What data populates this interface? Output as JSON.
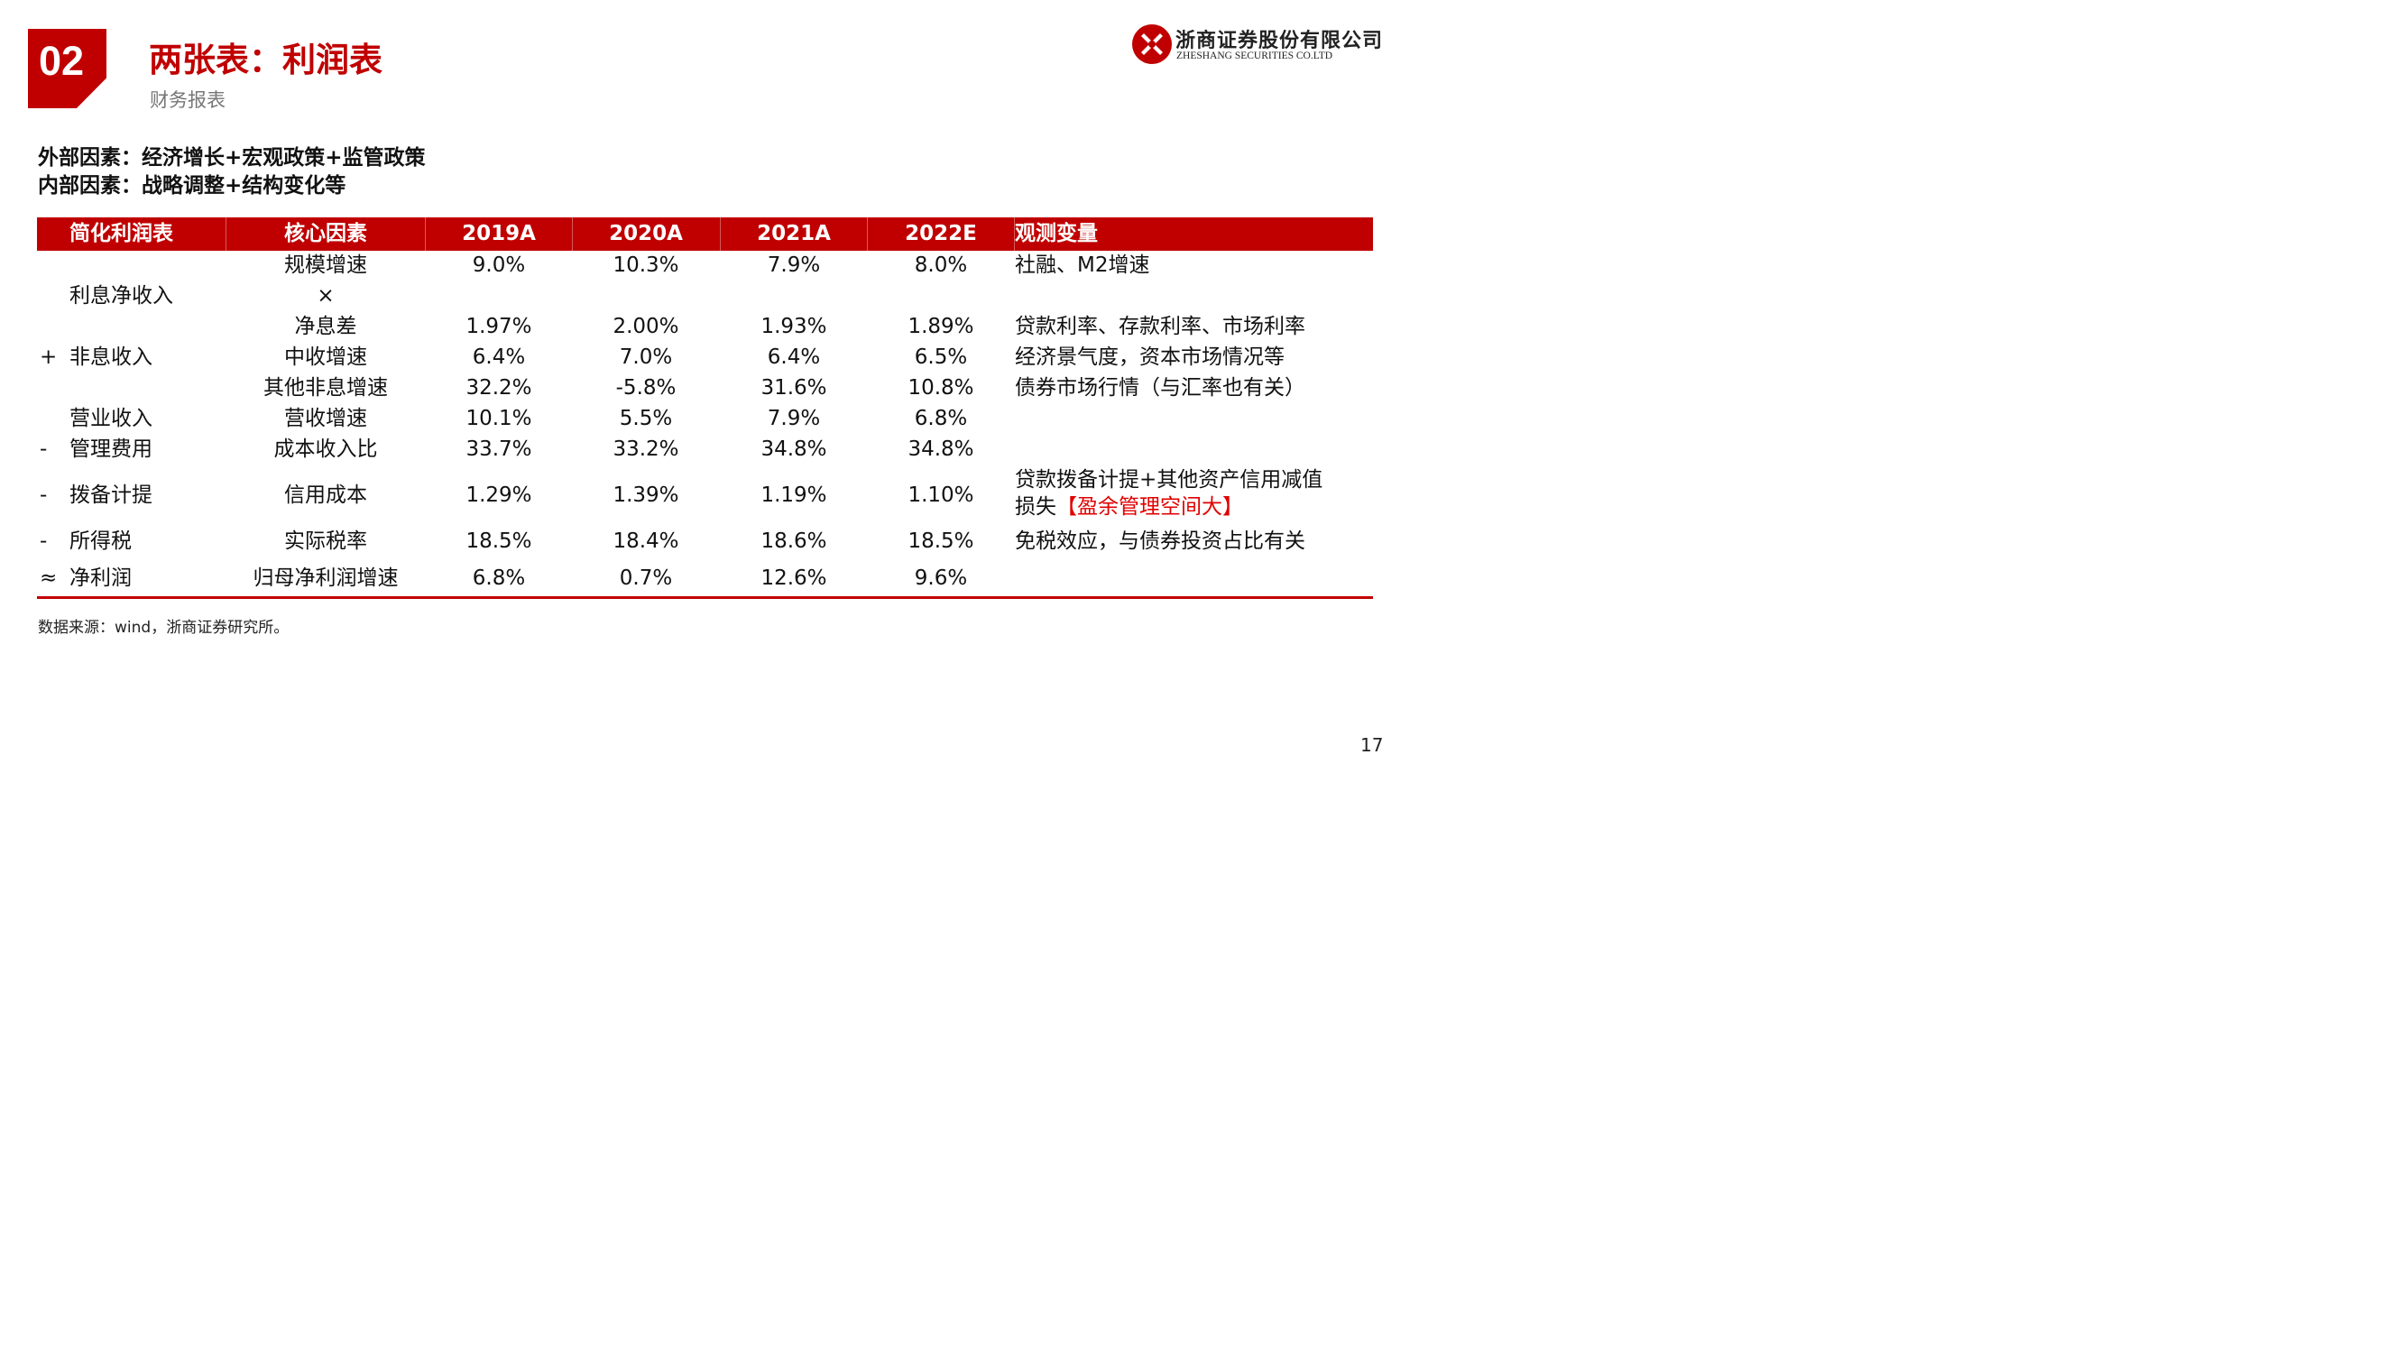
{
  "header": {
    "number": "02",
    "title": "两张表：利润表",
    "subtitle": "财务报表"
  },
  "logo": {
    "name_cn": "浙商证券股份有限公司",
    "name_en": "ZHESHANG SECURITIES CO.LTD"
  },
  "factors": {
    "external": "外部因素：经济增长+宏观政策+监管政策",
    "internal": "内部因素：战略调整+结构变化等"
  },
  "table": {
    "headers": [
      "简化利润表",
      "核心因素",
      "2019A",
      "2020A",
      "2021A",
      "2022E",
      "观测变量"
    ],
    "rows": [
      {
        "sign": "",
        "item": "",
        "factor": "规模增速",
        "v2019": "9.0%",
        "v2020": "10.3%",
        "v2021": "7.9%",
        "v2022": "8.0%",
        "observe": "社融、M2增速"
      },
      {
        "sign": "",
        "item": "利息净收入",
        "factor": "×",
        "v2019": "",
        "v2020": "",
        "v2021": "",
        "v2022": "",
        "observe": ""
      },
      {
        "sign": "",
        "item": "",
        "factor": "净息差",
        "v2019": "1.97%",
        "v2020": "2.00%",
        "v2021": "1.93%",
        "v2022": "1.89%",
        "observe": "贷款利率、存款利率、市场利率"
      },
      {
        "sign": "+",
        "item": "非息收入",
        "factor": "中收增速",
        "v2019": "6.4%",
        "v2020": "7.0%",
        "v2021": "6.4%",
        "v2022": "6.5%",
        "observe": "经济景气度，资本市场情况等"
      },
      {
        "sign": "",
        "item": "",
        "factor": "其他非息增速",
        "v2019": "32.2%",
        "v2020": "-5.8%",
        "v2021": "31.6%",
        "v2022": "10.8%",
        "observe": "债券市场行情（与汇率也有关）"
      },
      {
        "sign": "",
        "item": "营业收入",
        "factor": "营收增速",
        "v2019": "10.1%",
        "v2020": "5.5%",
        "v2021": "7.9%",
        "v2022": "6.8%",
        "observe": ""
      },
      {
        "sign": "-",
        "item": "管理费用",
        "factor": "成本收入比",
        "v2019": "33.7%",
        "v2020": "33.2%",
        "v2021": "34.8%",
        "v2022": "34.8%",
        "observe": ""
      },
      {
        "sign": "-",
        "item": "拨备计提",
        "factor": "信用成本",
        "v2019": "1.29%",
        "v2020": "1.39%",
        "v2021": "1.19%",
        "v2022": "1.10%",
        "observe": "贷款拨备计提+其他资产信用减值",
        "observe_line2_prefix": "损失",
        "observe_line2_red": "【盈余管理空间大】"
      },
      {
        "sign": "-",
        "item": "所得税",
        "factor": "实际税率",
        "v2019": "18.5%",
        "v2020": "18.4%",
        "v2021": "18.6%",
        "v2022": "18.5%",
        "observe": "免税效应，与债券投资占比有关"
      },
      {
        "sign": "≈",
        "item": "净利润",
        "factor": "归母净利润增速",
        "v2019": "6.8%",
        "v2020": "0.7%",
        "v2021": "12.6%",
        "v2022": "9.6%",
        "observe": ""
      }
    ]
  },
  "source": "数据来源：wind，浙商证券研究所。",
  "page_number": "17",
  "colors": {
    "brand_red": "#c00000",
    "highlight_red": "#e00000"
  }
}
